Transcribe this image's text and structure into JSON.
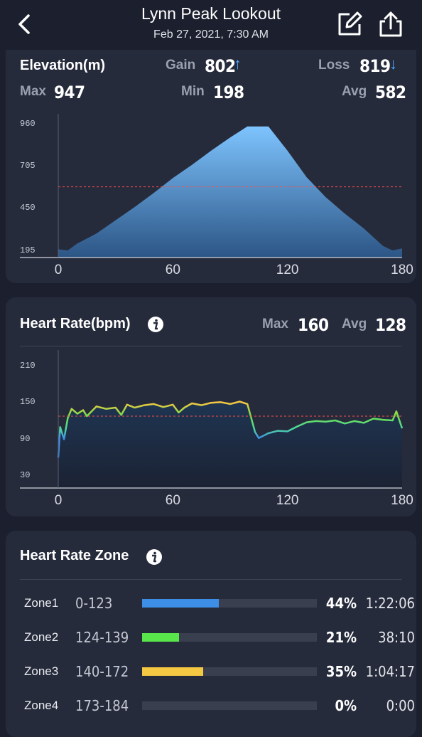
{
  "header": {
    "title": "Lynn Peak Lookout",
    "subtitle": "Feb 27, 2021, 7:30 AM",
    "back_icon": "chevron-left-icon",
    "edit_icon": "edit-icon",
    "share_icon": "share-icon"
  },
  "elevation": {
    "title": "Elevation(m)",
    "gain_label": "Gain",
    "gain_value": "802",
    "loss_label": "Loss",
    "loss_value": "819",
    "max_label": "Max",
    "max_value": "947",
    "min_label": "Min",
    "min_value": "198",
    "avg_label": "Avg",
    "avg_value": "582"
  },
  "heart_rate": {
    "title": "Heart Rate(bpm)",
    "max_label": "Max",
    "max_value": "160",
    "avg_label": "Avg",
    "avg_value": "128"
  },
  "zones": {
    "title": "Heart Rate Zone",
    "colors": [
      "#3d8ee6",
      "#59e64b",
      "#f4c842",
      "#ff6a3d"
    ],
    "items": [
      {
        "name": "Zone1",
        "range": "0-123",
        "percent": "44%",
        "fraction": 0.44,
        "time": "1:22:06"
      },
      {
        "name": "Zone2",
        "range": "124-139",
        "percent": "21%",
        "fraction": 0.21,
        "time": "38:10"
      },
      {
        "name": "Zone3",
        "range": "140-172",
        "percent": "35%",
        "fraction": 0.35,
        "time": "1:04:17"
      },
      {
        "name": "Zone4",
        "range": "173-184",
        "percent": "0%",
        "fraction": 0.0,
        "time": "0:00"
      }
    ]
  },
  "chart_data": [
    {
      "type": "area",
      "title": "Elevation(m)",
      "x_ticks": [
        "0",
        "60",
        "120",
        "180"
      ],
      "y_ticks": [
        "960",
        "705",
        "450",
        "195"
      ],
      "xlim": [
        0,
        180
      ],
      "ylim": [
        155,
        980
      ],
      "avg_line": 582,
      "grid": false,
      "x": [
        0,
        5,
        10,
        20,
        30,
        40,
        50,
        60,
        70,
        80,
        90,
        99,
        110,
        120,
        130,
        140,
        150,
        160,
        170,
        175,
        180
      ],
      "values": [
        205,
        198,
        240,
        300,
        380,
        460,
        545,
        635,
        715,
        800,
        880,
        947,
        947,
        800,
        640,
        520,
        420,
        330,
        225,
        198,
        210
      ]
    },
    {
      "type": "line",
      "title": "Heart Rate(bpm)",
      "x_ticks": [
        "0",
        "60",
        "120",
        "180"
      ],
      "y_ticks": [
        "210",
        "150",
        "90",
        "30"
      ],
      "xlim": [
        0,
        180
      ],
      "ylim": [
        10,
        225
      ],
      "avg_line": 128,
      "grid": false,
      "x": [
        0,
        1,
        3,
        5,
        7,
        10,
        13,
        15,
        20,
        25,
        30,
        33,
        36,
        40,
        45,
        50,
        55,
        60,
        63,
        66,
        70,
        75,
        80,
        85,
        90,
        95,
        99,
        101,
        103,
        105,
        110,
        115,
        120,
        125,
        130,
        135,
        140,
        145,
        150,
        155,
        160,
        165,
        170,
        175,
        177,
        180
      ],
      "values": [
        60,
        110,
        90,
        125,
        140,
        132,
        138,
        128,
        144,
        140,
        142,
        130,
        147,
        142,
        146,
        148,
        143,
        147,
        134,
        142,
        149,
        146,
        150,
        151,
        148,
        152,
        148,
        125,
        102,
        92,
        100,
        104,
        103,
        111,
        118,
        120,
        119,
        121,
        116,
        120,
        117,
        124,
        122,
        121,
        136,
        108
      ]
    }
  ]
}
